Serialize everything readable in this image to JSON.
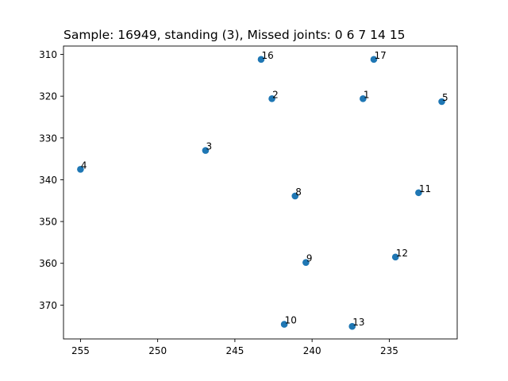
{
  "chart_data": {
    "type": "scatter",
    "title": "Sample: 16949, standing (3), Missed joints: 0  6  7  14  15",
    "xlabel": "",
    "ylabel": "",
    "x_inverted": true,
    "y_inverted": true,
    "xlim": [
      256.1,
      230.6
    ],
    "ylim": [
      378.1,
      308.0
    ],
    "xticks": [
      255,
      250,
      245,
      240,
      235
    ],
    "yticks": [
      310,
      320,
      330,
      340,
      350,
      360,
      370
    ],
    "grid": false,
    "marker_color": "#1f77b4",
    "points": [
      {
        "label": "1",
        "x": 236.7,
        "y": 320.6
      },
      {
        "label": "2",
        "x": 242.6,
        "y": 320.6
      },
      {
        "label": "3",
        "x": 246.9,
        "y": 333.0
      },
      {
        "label": "4",
        "x": 255.0,
        "y": 337.5
      },
      {
        "label": "5",
        "x": 231.6,
        "y": 321.3
      },
      {
        "label": "8",
        "x": 241.1,
        "y": 343.9
      },
      {
        "label": "9",
        "x": 240.4,
        "y": 359.8
      },
      {
        "label": "10",
        "x": 241.8,
        "y": 374.6
      },
      {
        "label": "11",
        "x": 233.1,
        "y": 343.1
      },
      {
        "label": "12",
        "x": 234.6,
        "y": 358.5
      },
      {
        "label": "13",
        "x": 237.4,
        "y": 375.1
      },
      {
        "label": "16",
        "x": 243.3,
        "y": 311.2
      },
      {
        "label": "17",
        "x": 236.0,
        "y": 311.2
      }
    ]
  }
}
